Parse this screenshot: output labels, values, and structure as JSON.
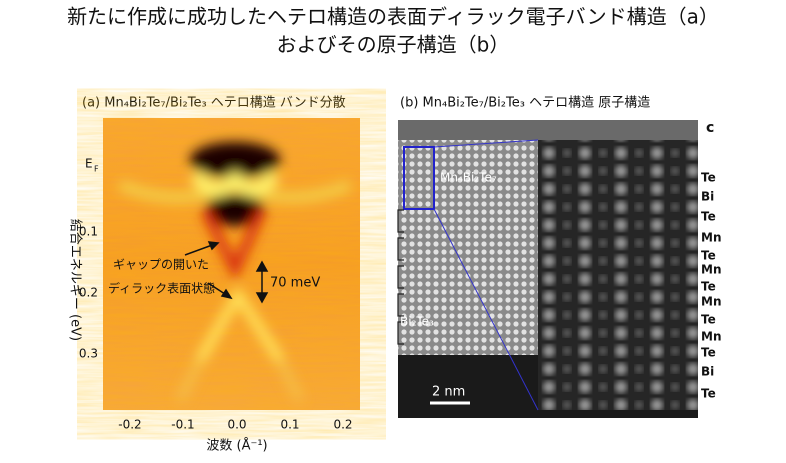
{
  "title": [
    "新たに作成に成功したヘテロ構造の表面ディラック電子バンド構造（a）",
    "およびその原子構造（b）"
  ],
  "panel_a": {
    "title": "(a) Mn₄Bi₂Te₇/Bi₂Te₃ ヘテロ構造 バンド分散",
    "x_ticks": [
      "-0.2",
      "-0.1",
      "0.0",
      "0.1",
      "0.2"
    ],
    "x_label": "波数 (Å⁻¹)",
    "y_ticks": [
      "E",
      "0.1",
      "0.2",
      "0.3"
    ],
    "y_tick_sub": "F",
    "y_label": "結合エネルギー (eV)",
    "annotation": [
      "ギャップの開いた",
      "ディラック表面状態"
    ],
    "gap": "70 meV"
  },
  "panel_b": {
    "title": "(b) Mn₄Bi₂Te₇/Bi₂Te₃ ヘテロ構造 原子構造",
    "axis": "c",
    "upper_label": "Mn₄Bi₂Te₇",
    "lower_label": "Bi₂Te₃",
    "scale": "2 nm",
    "layers": [
      "Te",
      "Bi",
      "Te",
      "Mn",
      "Te",
      "Mn",
      "Te",
      "Mn",
      "Te",
      "Mn",
      "Te",
      "Bi",
      "Te"
    ]
  }
}
